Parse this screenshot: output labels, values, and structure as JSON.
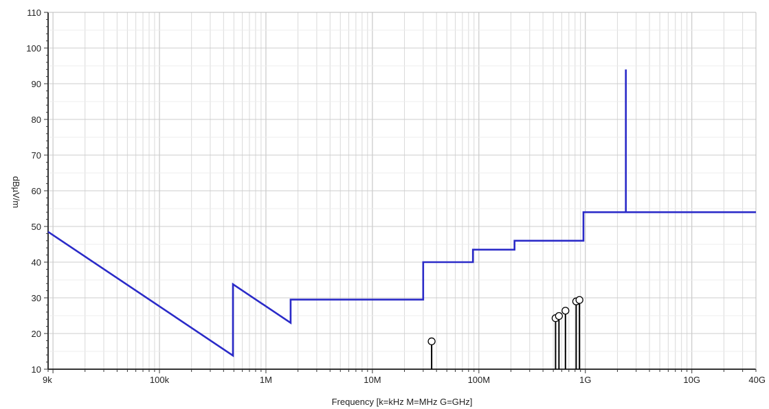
{
  "chart_data": {
    "type": "line",
    "title": "",
    "xlabel": "Frequency [k=kHz M=MHz G=GHz]",
    "ylabel": "dBµV/m",
    "x_scale": "log",
    "xlim": [
      9000,
      40000000000
    ],
    "ylim": [
      10,
      110
    ],
    "x_ticks": [
      {
        "value": 9000,
        "label": "9k"
      },
      {
        "value": 100000,
        "label": "100k"
      },
      {
        "value": 1000000,
        "label": "1M"
      },
      {
        "value": 10000000,
        "label": "10M"
      },
      {
        "value": 100000000,
        "label": "100M"
      },
      {
        "value": 1000000000,
        "label": "1G"
      },
      {
        "value": 10000000000,
        "label": "10G"
      },
      {
        "value": 40000000000,
        "label": "40G"
      }
    ],
    "y_ticks": [
      10,
      20,
      30,
      40,
      50,
      60,
      70,
      80,
      90,
      100,
      110
    ],
    "grid": true,
    "series": [
      {
        "kind": "limit-line",
        "color": "#2a2ac8",
        "points": [
          [
            9000,
            48.5
          ],
          [
            490000,
            13.8
          ],
          [
            490000,
            33.8
          ],
          [
            1705000,
            23.0
          ],
          [
            1705000,
            29.5
          ],
          [
            30000000,
            29.5
          ],
          [
            30000000,
            40.0
          ],
          [
            88000000,
            40.0
          ],
          [
            88000000,
            43.5
          ],
          [
            216000000,
            43.5
          ],
          [
            216000000,
            46.0
          ],
          [
            960000000,
            46.0
          ],
          [
            960000000,
            54.0
          ],
          [
            2400000000,
            54.0
          ],
          [
            2400000000,
            94.0
          ],
          [
            2400000000,
            54.0
          ],
          [
            40000000000,
            54.0
          ]
        ]
      },
      {
        "kind": "peak-markers",
        "color": "#000000",
        "points": [
          [
            36000000,
            17.8
          ],
          [
            525000000,
            24.3
          ],
          [
            565000000,
            24.9
          ],
          [
            650000000,
            26.4
          ],
          [
            820000000,
            29.0
          ],
          [
            880000000,
            29.4
          ]
        ]
      }
    ]
  }
}
